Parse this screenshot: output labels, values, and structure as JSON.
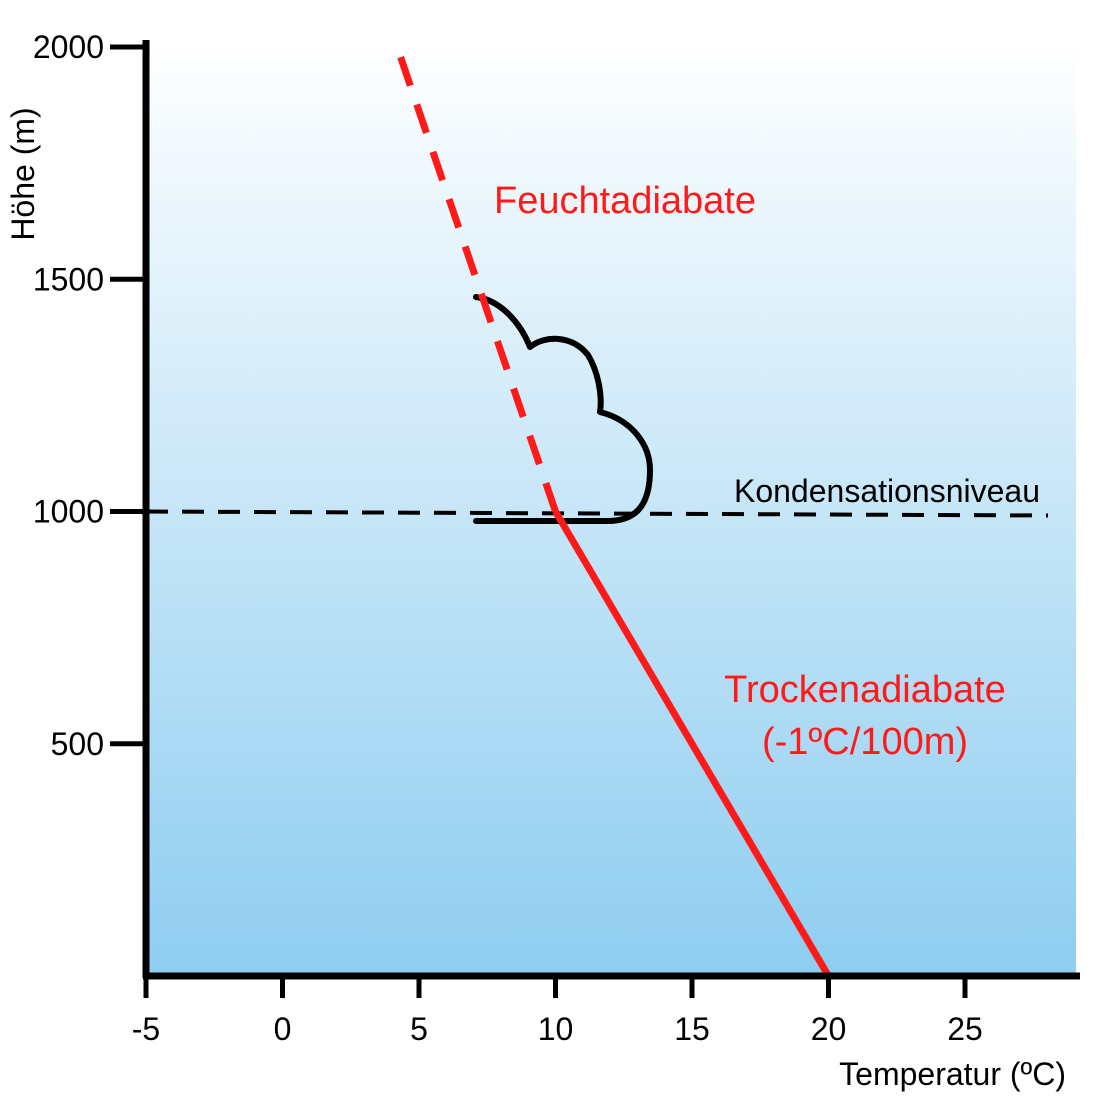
{
  "chart_data": {
    "type": "line",
    "xlabel": "Temperatur (ºC)",
    "ylabel": "Höhe (m)",
    "xlim": [
      -5,
      28
    ],
    "ylim": [
      0,
      2000
    ],
    "x_ticks": [
      "-5",
      "0",
      "5",
      "10",
      "15",
      "20",
      "25"
    ],
    "y_ticks": [
      "500",
      "1000",
      "1500",
      "2000"
    ],
    "grid": false,
    "series": [
      {
        "name": "Trockenadiabate",
        "sublabel": "(-1ºC/100m)",
        "style": "solid",
        "color": "#ff1a1a",
        "x": [
          20,
          10
        ],
        "y": [
          0,
          1000
        ]
      },
      {
        "name": "Feuchtadiabate",
        "style": "dashed",
        "color": "#ff1a1a",
        "x": [
          10,
          4.2
        ],
        "y": [
          1000,
          2000
        ]
      }
    ],
    "annotations": [
      {
        "text": "Kondensationsniveau",
        "type": "horizontal-dashed-line",
        "y": 1000,
        "color": "#000000"
      },
      {
        "type": "cloud-icon",
        "name": "cloud-icon"
      }
    ],
    "background_gradient": [
      "#ffffff",
      "#8ecdf0"
    ]
  }
}
